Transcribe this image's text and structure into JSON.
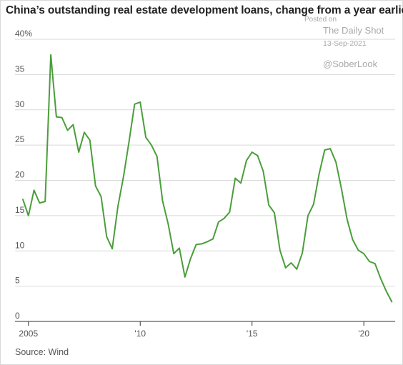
{
  "title": "China’s outstanding real estate development loans, change from a year earlier",
  "source": "Source: Wind",
  "watermark": {
    "posted": "Posted on",
    "site": "The Daily Shot",
    "date": "13-Sep-2021",
    "handle": "@SoberLook"
  },
  "colors": {
    "line": "#4a9e3a",
    "grid": "#d9d9d9",
    "axis": "#333333",
    "text": "#555555"
  },
  "chart_data": {
    "type": "line",
    "title": "China’s outstanding real estate development loans, change from a year earlier",
    "xlabel": "",
    "ylabel": "",
    "xlim": [
      2004.4,
      2021.4
    ],
    "ylim": [
      0,
      40
    ],
    "y_ticks": [
      {
        "value": 40,
        "label": "40%"
      },
      {
        "value": 35,
        "label": "35"
      },
      {
        "value": 30,
        "label": "30"
      },
      {
        "value": 25,
        "label": "25"
      },
      {
        "value": 20,
        "label": "20"
      },
      {
        "value": 15,
        "label": "15"
      },
      {
        "value": 10,
        "label": "10"
      },
      {
        "value": 5,
        "label": "5"
      },
      {
        "value": 0,
        "label": "0"
      }
    ],
    "x_ticks": [
      {
        "value": 2005,
        "label": "2005"
      },
      {
        "value": 2010,
        "label": "'10"
      },
      {
        "value": 2015,
        "label": "'15"
      },
      {
        "value": 2020,
        "label": "'20"
      }
    ],
    "grid": "horizontal",
    "series": [
      {
        "x": [
          2004.75,
          2005.0,
          2005.25,
          2005.5,
          2005.75,
          2006.0,
          2006.25,
          2006.5,
          2006.75,
          2007.0,
          2007.25,
          2007.5,
          2007.75,
          2008.0,
          2008.25,
          2008.5,
          2008.75,
          2009.0,
          2009.25,
          2009.5,
          2009.75,
          2010.0,
          2010.25,
          2010.5,
          2010.75,
          2011.0,
          2011.25,
          2011.5,
          2011.75,
          2012.0,
          2012.25,
          2012.5,
          2012.75,
          2013.0,
          2013.25,
          2013.5,
          2013.75,
          2014.0,
          2014.25,
          2014.5,
          2014.75,
          2015.0,
          2015.25,
          2015.5,
          2015.75,
          2016.0,
          2016.25,
          2016.5,
          2016.75,
          2017.0,
          2017.25,
          2017.5,
          2017.75,
          2018.0,
          2018.25,
          2018.5,
          2018.75,
          2019.0,
          2019.25,
          2019.5,
          2019.75,
          2020.0,
          2020.25,
          2020.5,
          2020.75,
          2021.0,
          2021.25
        ],
        "values": [
          17.3,
          15.0,
          18.6,
          16.8,
          17.0,
          37.8,
          29.0,
          28.9,
          27.1,
          27.9,
          24.0,
          26.8,
          25.7,
          19.2,
          17.7,
          12.0,
          10.3,
          16.3,
          20.5,
          25.5,
          30.8,
          31.1,
          26.1,
          25.0,
          23.4,
          17.1,
          13.8,
          9.6,
          10.4,
          6.3,
          8.9,
          10.9,
          11.0,
          11.3,
          11.7,
          14.1,
          14.6,
          15.5,
          20.3,
          19.6,
          22.8,
          24.0,
          23.5,
          21.3,
          16.5,
          15.4,
          10.1,
          7.6,
          8.3,
          7.4,
          9.7,
          15.0,
          16.6,
          20.9,
          24.3,
          24.5,
          22.6,
          18.8,
          14.5,
          11.6,
          10.1,
          9.6,
          8.5,
          8.2,
          6.1,
          4.3,
          2.8
        ]
      }
    ]
  }
}
